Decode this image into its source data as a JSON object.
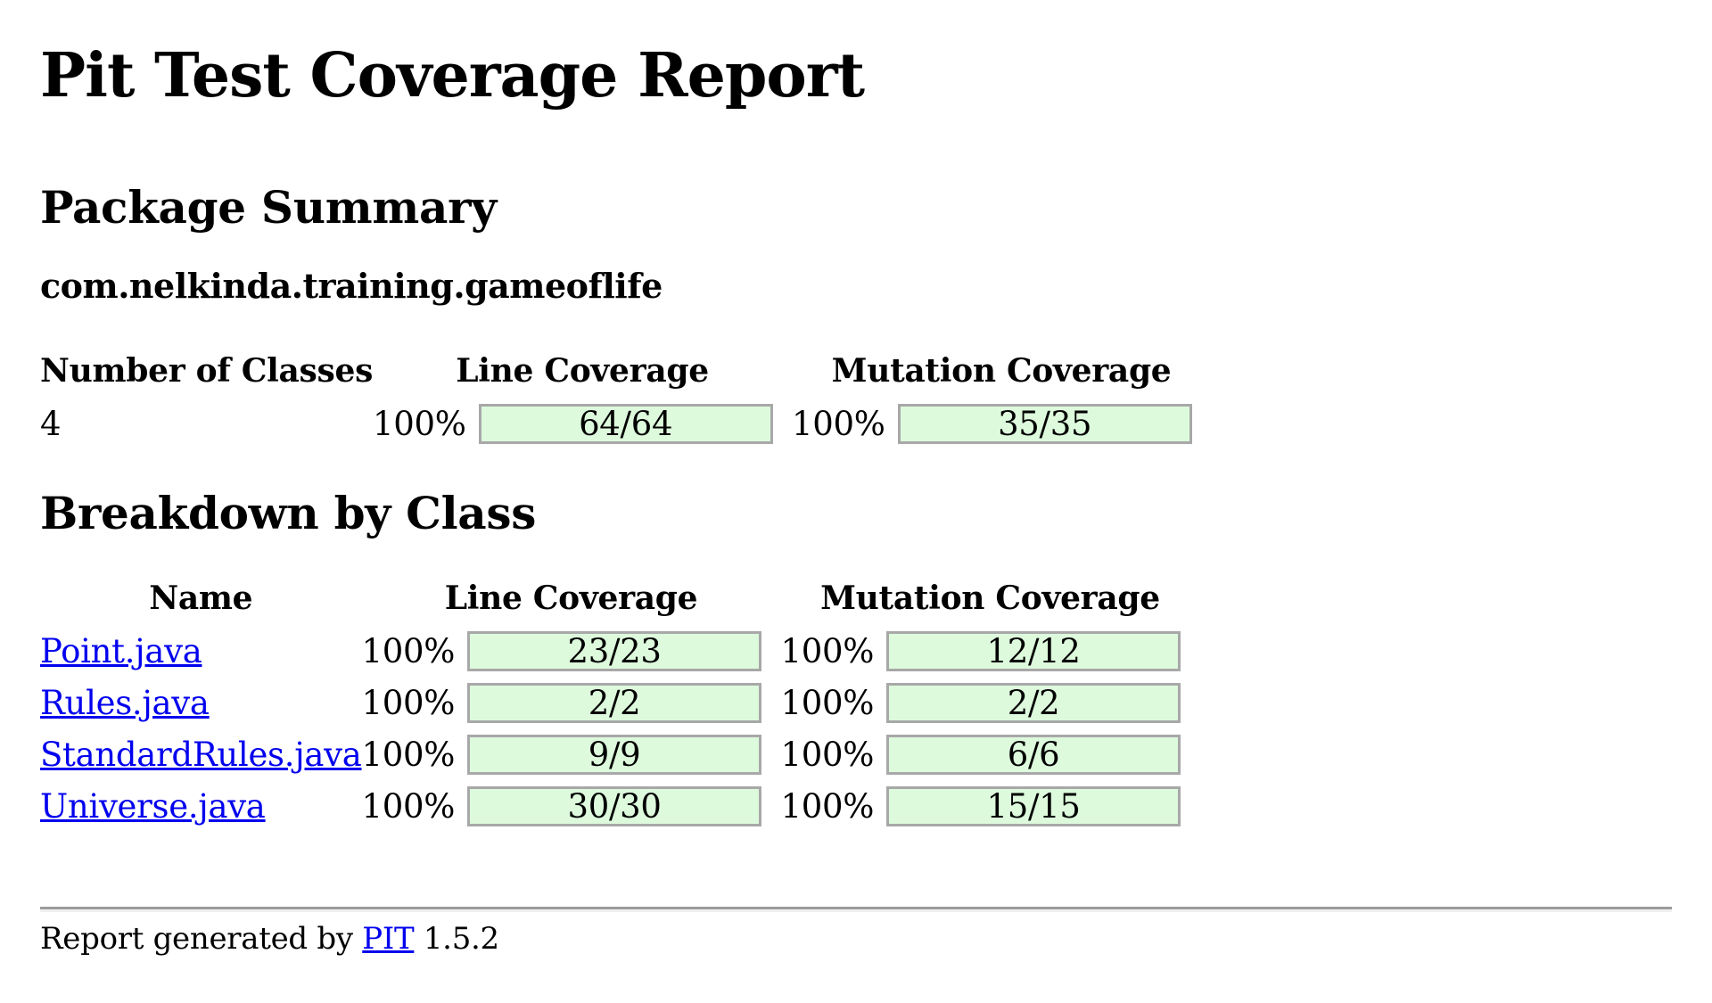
{
  "title": "Pit Test Coverage Report",
  "package_summary": {
    "heading": "Package Summary",
    "package_name": "com.nelkinda.training.gameoflife",
    "table": {
      "headers": [
        "Number of Classes",
        "Line Coverage",
        "Mutation Coverage"
      ],
      "row": {
        "number_of_classes": "4",
        "line": {
          "percent": "100%",
          "legend": "64/64",
          "fill": 100
        },
        "mutation": {
          "percent": "100%",
          "legend": "35/35",
          "fill": 100
        }
      }
    }
  },
  "breakdown": {
    "heading": "Breakdown by Class",
    "table": {
      "headers": [
        "Name",
        "Line Coverage",
        "Mutation Coverage"
      ],
      "rows": [
        {
          "name": "Point.java",
          "line": {
            "percent": "100%",
            "legend": "23/23",
            "fill": 100
          },
          "mutation": {
            "percent": "100%",
            "legend": "12/12",
            "fill": 100
          }
        },
        {
          "name": "Rules.java",
          "line": {
            "percent": "100%",
            "legend": "2/2",
            "fill": 100
          },
          "mutation": {
            "percent": "100%",
            "legend": "2/2",
            "fill": 100
          }
        },
        {
          "name": "StandardRules.java",
          "line": {
            "percent": "100%",
            "legend": "9/9",
            "fill": 100
          },
          "mutation": {
            "percent": "100%",
            "legend": "6/6",
            "fill": 100
          }
        },
        {
          "name": "Universe.java",
          "line": {
            "percent": "100%",
            "legend": "30/30",
            "fill": 100
          },
          "mutation": {
            "percent": "100%",
            "legend": "15/15",
            "fill": 100
          }
        }
      ]
    }
  },
  "footer": {
    "prefix": "Report generated by ",
    "link_label": "PIT",
    "suffix": " 1.5.2"
  },
  "colors": {
    "coverage_fill": "#DDFADD",
    "coverage_bar_border": "#A8A8A8",
    "link": "#0000EE"
  }
}
